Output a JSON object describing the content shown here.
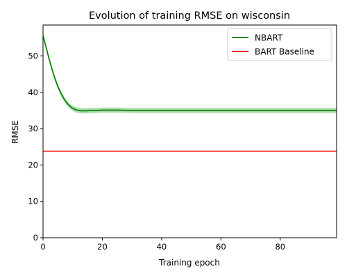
{
  "chart_data": {
    "type": "line",
    "title": "Evolution of training RMSE on wisconsin",
    "xlabel": "Training epoch",
    "ylabel": "RMSE",
    "xlim": [
      0,
      99
    ],
    "ylim": [
      0,
      58.5
    ],
    "xticks": [
      0,
      20,
      40,
      60,
      80
    ],
    "yticks": [
      0,
      10,
      20,
      30,
      40,
      50
    ],
    "grid": false,
    "legend_position": "upper right",
    "series": [
      {
        "name": "NBART",
        "color": "#008000",
        "band_color": "#90d090",
        "x": [
          0,
          1,
          2,
          3,
          4,
          5,
          6,
          7,
          8,
          9,
          10,
          11,
          12,
          13,
          14,
          15,
          16,
          18,
          20,
          22,
          25,
          30,
          40,
          50,
          60,
          70,
          80,
          90,
          99
        ],
        "y": [
          55.5,
          52.5,
          49.3,
          46.4,
          43.8,
          41.6,
          39.8,
          38.3,
          37.1,
          36.2,
          35.6,
          35.2,
          35.0,
          34.9,
          34.9,
          34.9,
          35.0,
          35.0,
          35.1,
          35.1,
          35.1,
          35.0,
          35.0,
          35.0,
          35.0,
          35.0,
          35.0,
          35.0,
          35.0
        ],
        "band": 0.7
      },
      {
        "name": "BART Baseline",
        "color": "#ff0000",
        "constant": 23.8
      }
    ]
  }
}
